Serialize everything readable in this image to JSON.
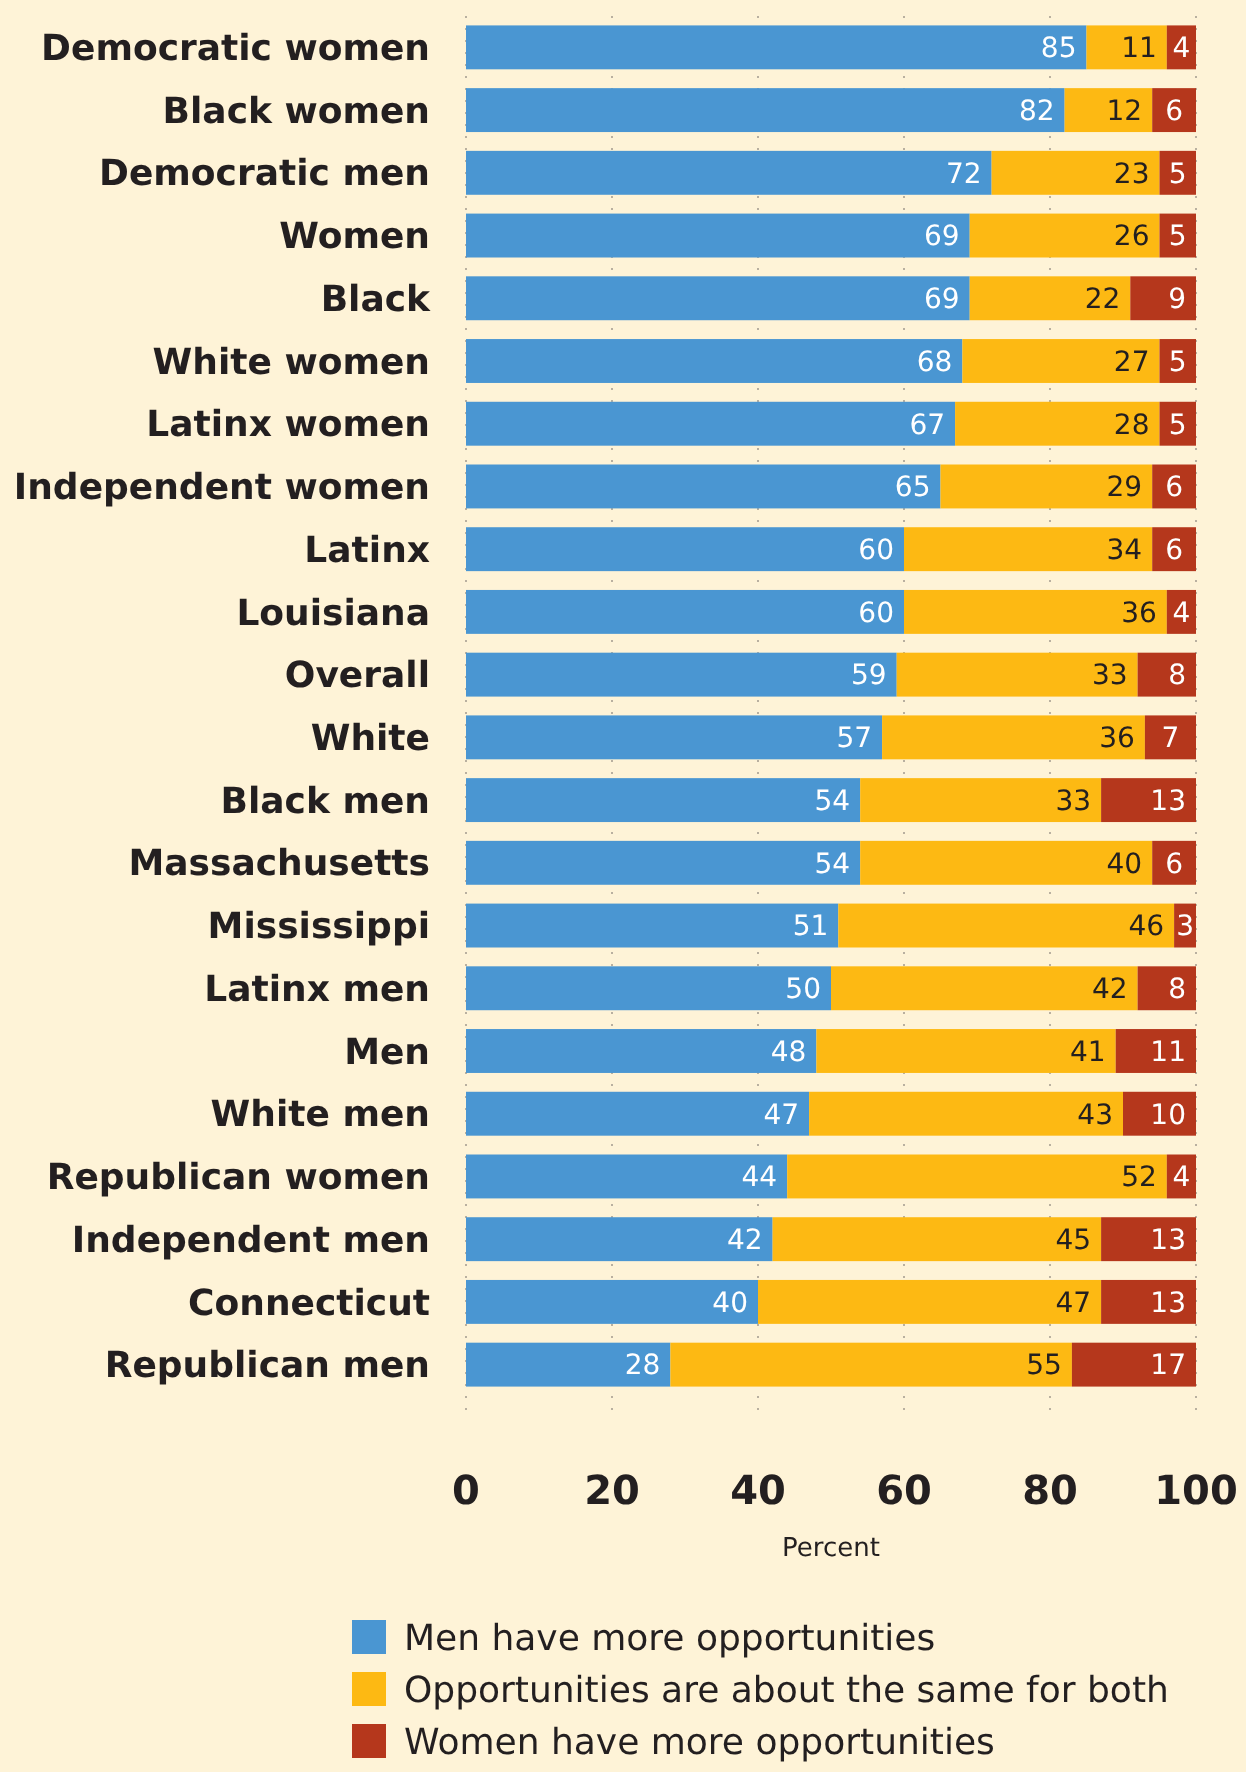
{
  "chart_data": {
    "type": "bar",
    "orientation": "horizontal",
    "stacked": true,
    "xlabel": "Percent",
    "categories": [
      "Democratic women",
      "Black women",
      "Democratic men",
      "Women",
      "Black",
      "White women",
      "Latinx women",
      "Independent women",
      "Latinx",
      "Louisiana",
      "Overall",
      "White",
      "Black men",
      "Massachusetts",
      "Mississippi",
      "Latinx men",
      "Men",
      "White men",
      "Republican women",
      "Independent men",
      "Connecticut",
      "Republican men"
    ],
    "series": [
      {
        "name": "Men have more opportunities",
        "color": "#4a96d2",
        "values": [
          85,
          82,
          72,
          69,
          69,
          68,
          67,
          65,
          60,
          60,
          59,
          57,
          54,
          54,
          51,
          50,
          48,
          47,
          44,
          42,
          40,
          28
        ]
      },
      {
        "name": "Opportunities are about the same for both",
        "color": "#fdb913",
        "values": [
          11,
          12,
          23,
          26,
          22,
          27,
          28,
          29,
          34,
          36,
          33,
          36,
          33,
          40,
          46,
          42,
          41,
          43,
          52,
          45,
          47,
          55
        ]
      },
      {
        "name": "Women have more opportunities",
        "color": "#b5371c",
        "values": [
          4,
          6,
          5,
          5,
          9,
          5,
          5,
          6,
          6,
          4,
          8,
          7,
          13,
          6,
          3,
          8,
          11,
          10,
          4,
          13,
          13,
          17
        ]
      }
    ],
    "xlim": [
      0,
      100
    ],
    "xticks": [
      0,
      20,
      40,
      60,
      80,
      100
    ],
    "grid": "x",
    "legend": "bottom",
    "data_labels": true
  }
}
